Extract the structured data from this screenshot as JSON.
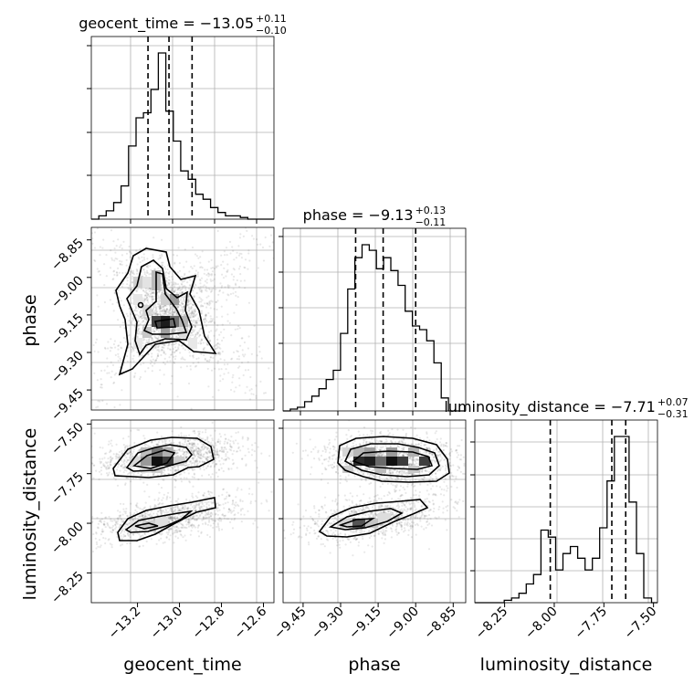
{
  "chart_data": {
    "type": "corner",
    "parameters": [
      "geocent_time",
      "phase",
      "luminosity_distance"
    ],
    "axis_labels": {
      "geocent_time": "geocent_time",
      "phase": "phase",
      "luminosity_distance": "luminosity_distance"
    },
    "ranges": {
      "geocent_time": [
        -13.42,
        -12.55
      ],
      "phase": [
        -9.53,
        -8.8
      ],
      "luminosity_distance": [
        -8.4,
        -7.48
      ]
    },
    "ticks": {
      "geocent_time": {
        "values": [
          -13.2,
          -13.0,
          -12.8,
          -12.6
        ],
        "labels": [
          "−13.2",
          "−13.0",
          "−12.8",
          "−12.6"
        ]
      },
      "phase": {
        "values": [
          -9.45,
          -9.3,
          -9.15,
          -9.0,
          -8.85
        ],
        "labels": [
          "−9.45",
          "−9.30",
          "−9.15",
          "−9.00",
          "−8.85"
        ]
      },
      "luminosity_distance": {
        "values": [
          -8.25,
          -8.0,
          -7.75,
          -7.5
        ],
        "labels": [
          "−8.25",
          "−8.00",
          "−7.75",
          "−7.50"
        ]
      }
    },
    "titles": {
      "geocent_time": {
        "prefix": "geocent_time = −13.05",
        "upper": "+0.11",
        "lower": "−0.10"
      },
      "phase": {
        "prefix": "phase = −9.13",
        "upper": "+0.13",
        "lower": "−0.11"
      },
      "luminosity_distance": {
        "prefix": "luminosity_distance = −7.71",
        "upper": "+0.07",
        "lower": "−0.31"
      }
    },
    "quantiles": {
      "geocent_time": [
        -13.15,
        -13.05,
        -12.94
      ],
      "phase": [
        -9.24,
        -9.13,
        -9.0
      ],
      "luminosity_distance": [
        -8.02,
        -7.71,
        -7.64
      ]
    },
    "histograms": {
      "geocent_time": {
        "edges": [
          -13.42,
          -13.3845,
          -13.349,
          -13.3135,
          -13.278,
          -13.2425,
          -13.207,
          -13.1715,
          -13.136,
          -13.1005,
          -13.065,
          -13.0295,
          -12.994,
          -12.9585,
          -12.923,
          -12.8875,
          -12.852,
          -12.8165,
          -12.781,
          -12.7455,
          -12.71,
          -12.6745,
          -12.639
        ],
        "counts": [
          0,
          2,
          5,
          10,
          20,
          44,
          61,
          64,
          78,
          100,
          65,
          47,
          29,
          24,
          15,
          12,
          7,
          4,
          2,
          2,
          1,
          0
        ]
      },
      "phase": {
        "edges": [
          -9.53,
          -9.5013,
          -9.4726,
          -9.4439,
          -9.4152,
          -9.3865,
          -9.3578,
          -9.3291,
          -9.3004,
          -9.2717,
          -9.243,
          -9.2143,
          -9.1856,
          -9.1569,
          -9.128,
          -9.0993,
          -9.0706,
          -9.0419,
          -9.0132,
          -8.9845,
          -8.9558,
          -8.9271,
          -8.898,
          -8.869
        ],
        "counts": [
          0,
          1,
          2,
          5,
          8,
          12,
          17,
          22,
          42,
          66,
          83,
          90,
          87,
          77,
          83,
          76,
          68,
          54,
          46,
          44,
          38,
          26,
          7
        ]
      },
      "luminosity_distance": {
        "edges": [
          -8.4,
          -8.363,
          -8.326,
          -8.289,
          -8.252,
          -8.215,
          -8.178,
          -8.141,
          -8.104,
          -8.067,
          -8.03,
          -7.993,
          -7.956,
          -7.919,
          -7.882,
          -7.845,
          -7.808,
          -7.771,
          -7.734,
          -7.697,
          -7.66,
          -7.623,
          -7.586,
          -7.549,
          -7.51
        ],
        "counts": [
          0,
          0,
          0,
          0,
          1,
          2,
          4,
          8,
          12,
          31,
          28,
          14,
          21,
          24,
          19,
          14,
          19,
          32,
          52,
          71,
          71,
          43,
          21,
          2
        ]
      }
    },
    "grid": true
  }
}
